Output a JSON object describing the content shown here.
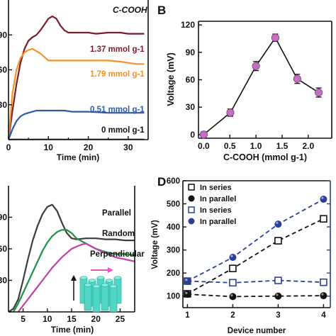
{
  "colors": {
    "maroon": "#7b1c2c",
    "orange": "#f5902a",
    "blue": "#2e5aa8",
    "black": "#111111",
    "gray": "#3d3d3d",
    "green": "#1a9440",
    "magenta": "#c23ea4",
    "pink_marker": "#c46fc2",
    "navy": "#2c3f96",
    "teal": "#4fd6c4",
    "arrow_pink": "#e055c7"
  },
  "chart_data": [
    {
      "id": "A",
      "type": "line",
      "panel_letter": "",
      "title": "",
      "xlabel": "Time (min)",
      "ylabel": "",
      "xlim": [
        0,
        35
      ],
      "ylim": [
        0,
        120
      ],
      "xticks": [
        0,
        10,
        20,
        30
      ],
      "yticks_visible": [
        0,
        30,
        60,
        90
      ],
      "legend_title": "C-COOH",
      "series": [
        {
          "name": "1.37 mmol g-1",
          "color": "#7b1c2c",
          "x": [
            0,
            1,
            2,
            3,
            4,
            5,
            6,
            7,
            8,
            9,
            10,
            11,
            12,
            13,
            14,
            15,
            17,
            20,
            22,
            25,
            28,
            30,
            32,
            34
          ],
          "y": [
            0,
            25,
            48,
            66,
            78,
            85,
            88,
            90,
            94,
            99,
            104,
            106,
            104,
            98,
            94,
            92,
            92,
            92,
            91,
            92,
            92,
            91,
            91,
            91
          ]
        },
        {
          "name": "1.79 mmol g-1",
          "color": "#f5902a",
          "x": [
            0,
            1,
            2,
            3,
            4,
            5,
            6,
            7,
            8,
            9,
            10,
            11,
            12,
            13,
            14,
            16,
            18,
            20,
            22,
            25,
            28,
            30,
            32,
            34
          ],
          "y": [
            0,
            40,
            60,
            70,
            75,
            77,
            78,
            76,
            74,
            71,
            68,
            68,
            68,
            68,
            68,
            68,
            68,
            68,
            68,
            68,
            67,
            66,
            65,
            65
          ]
        },
        {
          "name": "0.51 mmol g-1",
          "color": "#2e5aa8",
          "x": [
            0,
            1,
            2,
            3,
            4,
            5,
            6,
            7,
            8,
            10,
            12,
            14,
            16,
            20,
            25,
            30,
            34
          ],
          "y": [
            0,
            9,
            16,
            20,
            22,
            23,
            24,
            25,
            25,
            25,
            25,
            25,
            24,
            24,
            23,
            23,
            23
          ]
        },
        {
          "name": "0 mmol g-1",
          "color": "#111111",
          "x": [
            0,
            34
          ],
          "y": [
            0,
            0
          ]
        }
      ],
      "annotations": [
        "1.37 mmol g-1",
        "1.79 mmol g-1",
        "0.51 mmol g-1",
        "0 mmol g-1"
      ]
    },
    {
      "id": "B",
      "type": "line",
      "panel_letter": "B",
      "title": "",
      "xlabel": "C-COOH (mmol g-1)",
      "ylabel": "Voltage (mV)",
      "xlim": [
        -0.1,
        2.45
      ],
      "ylim": [
        -4,
        124
      ],
      "xticks": [
        0.0,
        0.5,
        1.0,
        1.5,
        2.0
      ],
      "yticks": [
        0,
        30,
        60,
        90,
        120
      ],
      "series": [
        {
          "name": "",
          "color": "#111111",
          "x": [
            0,
            0.51,
            1.0,
            1.37,
            1.79,
            2.2
          ],
          "y": [
            0,
            24,
            75,
            106,
            61,
            46
          ],
          "err": [
            3,
            4,
            5,
            4,
            5,
            5
          ]
        }
      ]
    },
    {
      "id": "C",
      "type": "line",
      "panel_letter": "",
      "title": "",
      "xlabel": "Time (min)",
      "ylabel": "",
      "xlim": [
        2,
        28
      ],
      "ylim": [
        0,
        120
      ],
      "xticks": [
        5,
        10,
        15,
        20,
        25
      ],
      "yticks_visible": [
        0,
        30,
        60,
        90
      ],
      "series": [
        {
          "name": "Parallel",
          "color": "#3d3d3d",
          "x": [
            2,
            3,
            4,
            5,
            6,
            7,
            8,
            9,
            10,
            11,
            12,
            13,
            14,
            15,
            16,
            18,
            20,
            22,
            24,
            26,
            28
          ],
          "y": [
            0,
            3,
            12,
            30,
            50,
            68,
            82,
            93,
            100,
            102,
            96,
            85,
            75,
            70,
            69,
            70,
            70,
            69,
            69,
            68,
            68
          ]
        },
        {
          "name": "Random",
          "color": "#1a9440",
          "x": [
            3,
            4,
            5,
            6,
            7,
            8,
            9,
            10,
            11,
            12,
            13,
            14,
            15,
            16,
            18,
            20,
            22,
            24,
            26,
            28
          ],
          "y": [
            0,
            8,
            18,
            28,
            38,
            48,
            58,
            66,
            72,
            76,
            78,
            78,
            75,
            70,
            65,
            60,
            57,
            55,
            55,
            54
          ]
        },
        {
          "name": "Perpendicular",
          "color": "#c23ea4",
          "x": [
            4,
            5,
            6,
            7,
            8,
            9,
            10,
            11,
            12,
            13,
            14,
            15,
            16,
            17,
            18,
            20,
            22,
            24,
            26,
            28
          ],
          "y": [
            0,
            6,
            12,
            18,
            24,
            30,
            36,
            42,
            47,
            52,
            56,
            60,
            62,
            64,
            65,
            60,
            56,
            52,
            50,
            48
          ]
        }
      ],
      "annotations": [
        "Parallel",
        "Random",
        "Perpendicular"
      ]
    },
    {
      "id": "D",
      "type": "line",
      "panel_letter": "D",
      "title": "",
      "xlabel": "Device number",
      "ylabel": "Voltage (mV)",
      "xlim": [
        0.9,
        4.15
      ],
      "ylim": [
        50,
        600
      ],
      "xticks": [
        1,
        2,
        3,
        4
      ],
      "yticks": [
        100,
        200,
        300,
        400,
        500,
        600
      ],
      "legend_position": "top-left",
      "series": [
        {
          "name": "In series",
          "color": "#111111",
          "marker": "open-square",
          "axis": "left",
          "x": [
            1,
            2,
            3,
            4
          ],
          "y": [
            110,
            220,
            340,
            435
          ]
        },
        {
          "name": "In parallel",
          "color": "#111111",
          "marker": "filled-circle",
          "axis": "left",
          "x": [
            1,
            2,
            3,
            4
          ],
          "y": [
            108,
            98,
            100,
            102
          ]
        },
        {
          "name": "In series",
          "color": "#2c3f96",
          "marker": "open-square",
          "axis": "right",
          "x": [
            1,
            2,
            3,
            4
          ],
          "y": [
            165,
            158,
            168,
            160
          ]
        },
        {
          "name": "In parallel",
          "color": "#2c3f96",
          "marker": "filled-circle",
          "axis": "right",
          "x": [
            1,
            2,
            3,
            4
          ],
          "y": [
            165,
            268,
            412,
            520
          ]
        }
      ]
    }
  ]
}
